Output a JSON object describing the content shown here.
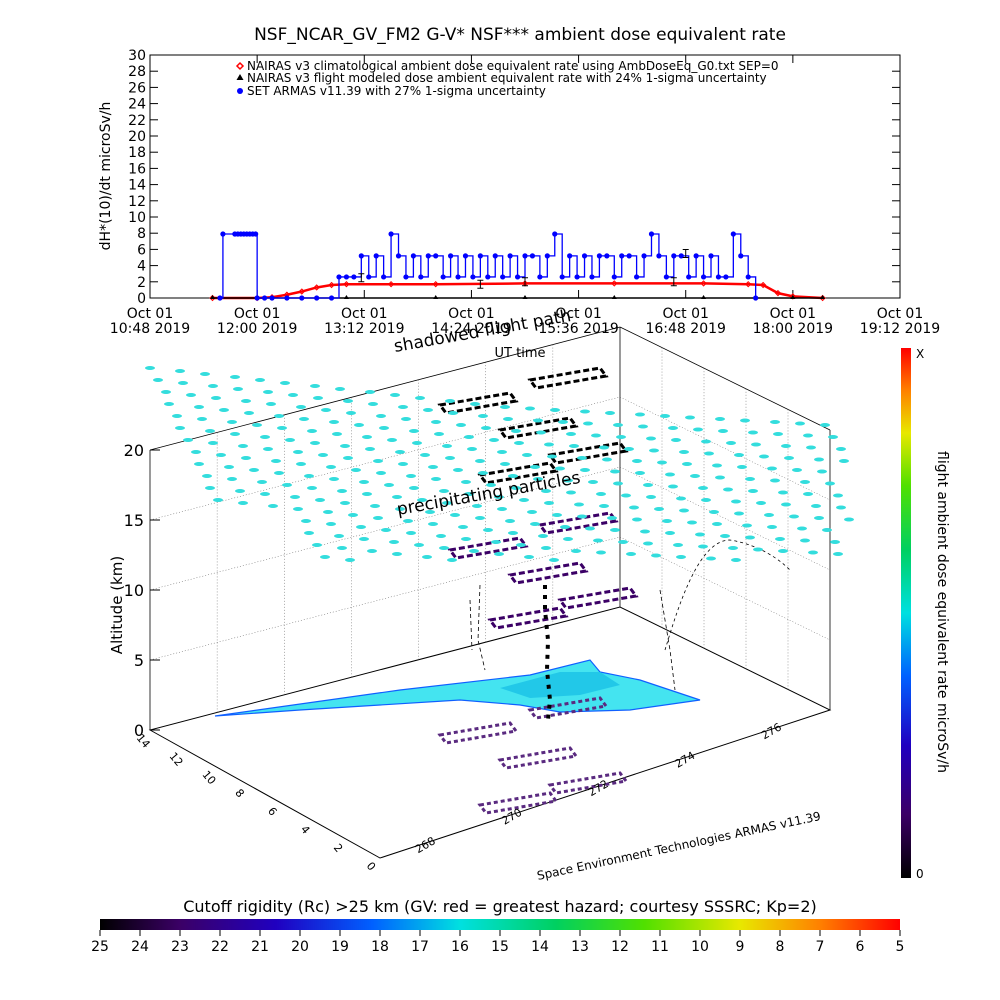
{
  "top_chart": {
    "title": "NSF_NCAR_GV_FM2 G-V* NSF*** ambient dose equivalent rate",
    "ylabel": "dH*(10)/dt microSv/h",
    "xlabel": "UT time",
    "y_ticks": [
      "0",
      "2",
      "4",
      "6",
      "8",
      "10",
      "12",
      "14",
      "16",
      "18",
      "20",
      "22",
      "24",
      "26",
      "28",
      "30"
    ],
    "x_ticks_line1": [
      "Oct 01",
      "Oct 01",
      "Oct 01",
      "Oct 01",
      "Oct 01",
      "Oct 01",
      "Oct 01",
      "Oct 01"
    ],
    "x_ticks_line2": [
      "10:48 2019",
      "12:00 2019",
      "13:12 2019",
      "14:24 2019",
      "15:36 2019",
      "16:48 2019",
      "18:00 2019",
      "19:12 2019"
    ],
    "legend": [
      {
        "label": "NAIRAS v3 climatological ambient dose equivalent rate using AmbDoseEq_G0.txt SEP=0",
        "color": "#ff0000",
        "symbol": "diamond"
      },
      {
        "label": "NAIRAS v3 flight modeled dose ambient equivalent rate with 24% 1-sigma uncertainty",
        "color": "#000000",
        "symbol": "triangle"
      },
      {
        "label": "SET ARMAS v11.39 with 27% 1-sigma uncertainty",
        "color": "#0000ff",
        "symbol": "dot"
      }
    ]
  },
  "chart_data": [
    {
      "type": "line",
      "title": "NSF_NCAR_GV_FM2 G-V* NSF*** ambient dose equivalent rate",
      "xlabel": "UT time",
      "ylabel": "dH*(10)/dt microSv/h",
      "xlim": [
        "10:48",
        "19:12"
      ],
      "ylim": [
        0,
        30
      ],
      "series": [
        {
          "name": "NAIRAS v3 climatological ambient dose equivalent rate using AmbDoseEq_G0.txt SEP=0",
          "color": "#ff0000",
          "x": [
            "11:30",
            "12:00",
            "12:10",
            "12:20",
            "12:30",
            "12:40",
            "12:50",
            "13:00",
            "13:30",
            "14:00",
            "15:00",
            "16:00",
            "17:00",
            "17:30",
            "17:40",
            "17:50",
            "18:00",
            "18:20"
          ],
          "y": [
            0.0,
            0.0,
            0.1,
            0.4,
            0.8,
            1.3,
            1.6,
            1.7,
            1.7,
            1.7,
            1.8,
            1.8,
            1.8,
            1.7,
            1.6,
            0.6,
            0.2,
            0.0
          ]
        },
        {
          "name": "NAIRAS v3 flight modeled dose ambient equivalent rate with 24% 1-sigma uncertainty",
          "color": "#000000",
          "x": [
            "11:30",
            "12:00",
            "13:00",
            "14:00",
            "15:00",
            "16:00",
            "17:00",
            "18:00",
            "18:20"
          ],
          "y": [
            0,
            0,
            0,
            0,
            0,
            0,
            0,
            0,
            0
          ]
        },
        {
          "name": "SET ARMAS v11.39 with 27% 1-sigma uncertainty",
          "color": "#0000ff",
          "x": [
            "11:35",
            "11:37",
            "11:45",
            "11:47",
            "11:49",
            "11:51",
            "11:53",
            "11:55",
            "11:57",
            "11:59",
            "12:00",
            "12:05",
            "12:10",
            "12:20",
            "12:30",
            "12:40",
            "12:50",
            "12:55",
            "13:00",
            "13:05",
            "13:10",
            "13:15",
            "13:20",
            "13:25",
            "13:30",
            "13:35",
            "13:40",
            "13:45",
            "13:50",
            "13:55",
            "14:00",
            "14:05",
            "14:10",
            "14:15",
            "14:20",
            "14:25",
            "14:30",
            "14:35",
            "14:40",
            "14:45",
            "14:50",
            "14:55",
            "15:00",
            "15:05",
            "15:10",
            "15:15",
            "15:20",
            "15:25",
            "15:30",
            "15:35",
            "15:40",
            "15:45",
            "15:50",
            "15:55",
            "16:00",
            "16:05",
            "16:10",
            "16:15",
            "16:20",
            "16:25",
            "16:30",
            "16:35",
            "16:40",
            "16:45",
            "16:50",
            "16:55",
            "17:00",
            "17:05",
            "17:10",
            "17:15",
            "17:20",
            "17:25",
            "17:30",
            "17:35"
          ],
          "y": [
            0,
            7.9,
            7.9,
            7.9,
            7.9,
            7.9,
            7.9,
            7.9,
            7.9,
            7.9,
            0,
            0,
            0,
            0,
            0,
            0,
            0,
            2.6,
            2.6,
            2.6,
            5.2,
            2.6,
            5.2,
            2.6,
            7.9,
            5.2,
            2.6,
            5.2,
            2.6,
            5.2,
            5.2,
            2.6,
            5.2,
            2.6,
            5.2,
            2.6,
            5.2,
            2.6,
            5.2,
            2.6,
            5.2,
            2.6,
            5.2,
            5.2,
            2.6,
            5.2,
            7.9,
            2.6,
            5.2,
            2.6,
            5.2,
            2.6,
            5.2,
            5.2,
            2.6,
            5.2,
            5.2,
            2.6,
            5.2,
            7.9,
            5.2,
            2.6,
            5.2,
            5.2,
            2.6,
            5.2,
            2.6,
            5.2,
            2.6,
            2.6,
            7.9,
            5.2,
            2.6,
            0
          ]
        }
      ]
    },
    {
      "type": "scatter",
      "title": "",
      "zlabel": "Altitude (km)",
      "z_ticks": [
        "0",
        "5",
        "10",
        "15",
        "20"
      ],
      "x_ticks": [
        "268",
        "270",
        "272",
        "274",
        "276"
      ],
      "y_ticks": [
        "0",
        "2",
        "4",
        "6",
        "8",
        "10",
        "12",
        "14"
      ],
      "annotations": [
        "shadowed flight path",
        "precipitating particles"
      ],
      "credit": "Space Environment Technologies ARMAS v11.39"
    }
  ],
  "scene_3d": {
    "zlabel": "Altitude (km)",
    "z_ticks": [
      "0",
      "5",
      "10",
      "15",
      "20"
    ],
    "x_ticks": [
      "268",
      "270",
      "272",
      "274",
      "276"
    ],
    "y_ticks": [
      "0",
      "2",
      "4",
      "6",
      "8",
      "10",
      "12",
      "14"
    ],
    "shadow_label": "shadowed flight path",
    "precip_label": "precipitating particles",
    "credit": "Space Environment Technologies ARMAS v11.39"
  },
  "side_colorbar": {
    "label": "flight ambient dose equivalent rate microSv/h",
    "top": "X",
    "bottom": "0"
  },
  "bottom_colorbar": {
    "title": "Cutoff rigidity (Rc) >25 km (GV: red = greatest hazard; courtesy SSSRC; Kp=2)",
    "ticks": [
      "25",
      "24",
      "23",
      "22",
      "21",
      "20",
      "19",
      "18",
      "17",
      "16",
      "15",
      "14",
      "13",
      "12",
      "11",
      "10",
      "9",
      "8",
      "7",
      "6",
      "5"
    ]
  },
  "colors": {
    "nairas_clim": "#ff0000",
    "nairas_flight": "#000000",
    "armas": "#0000ff",
    "particles": "#33dddd",
    "flight_path": "#000000",
    "cutoff_fill": "#44e4f0"
  }
}
